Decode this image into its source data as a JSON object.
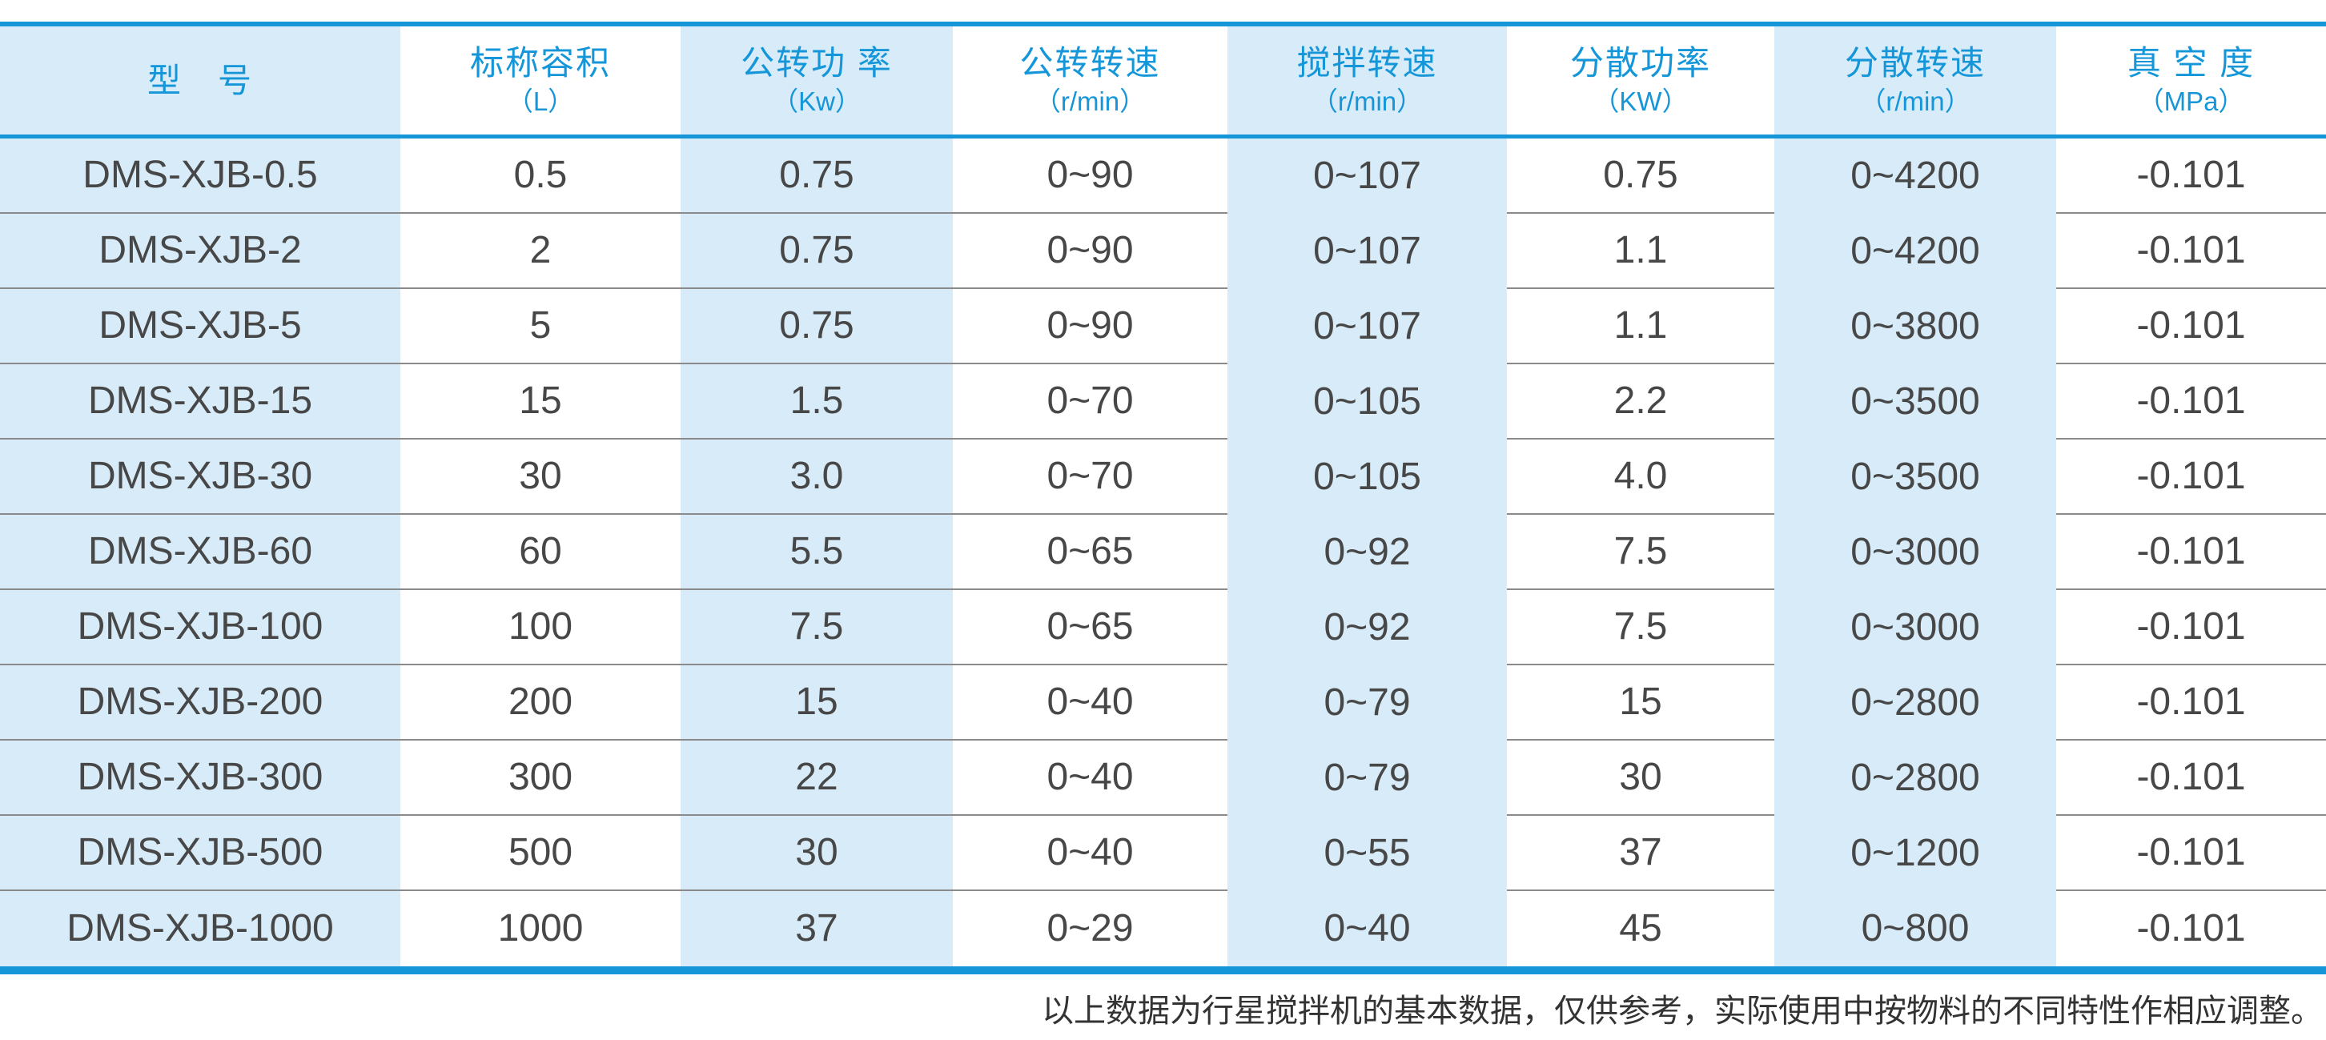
{
  "accent_color": "#1496d9",
  "band_color": "#d7ebf8",
  "table": {
    "columns": [
      {
        "title": "型　号",
        "unit": ""
      },
      {
        "title": "标称容积",
        "unit": "（L）"
      },
      {
        "title": "公转功 率",
        "unit": "（Kw）"
      },
      {
        "title": "公转转速",
        "unit": "（r/min）"
      },
      {
        "title": "搅拌转速",
        "unit": "（r/min）"
      },
      {
        "title": "分散功率",
        "unit": "（KW）"
      },
      {
        "title": "分散转速",
        "unit": "（r/min）"
      },
      {
        "title": "真 空 度",
        "unit": "（MPa）"
      }
    ],
    "rows": [
      [
        "DMS-XJB-0.5",
        "0.5",
        "0.75",
        "0~90",
        "0~107",
        "0.75",
        "0~4200",
        "-0.101"
      ],
      [
        "DMS-XJB-2",
        "2",
        "0.75",
        "0~90",
        "0~107",
        "1.1",
        "0~4200",
        "-0.101"
      ],
      [
        "DMS-XJB-5",
        "5",
        "0.75",
        "0~90",
        "0~107",
        "1.1",
        "0~3800",
        "-0.101"
      ],
      [
        "DMS-XJB-15",
        "15",
        "1.5",
        "0~70",
        "0~105",
        "2.2",
        "0~3500",
        "-0.101"
      ],
      [
        "DMS-XJB-30",
        "30",
        "3.0",
        "0~70",
        "0~105",
        "4.0",
        "0~3500",
        "-0.101"
      ],
      [
        "DMS-XJB-60",
        "60",
        "5.5",
        "0~65",
        "0~92",
        "7.5",
        "0~3000",
        "-0.101"
      ],
      [
        "DMS-XJB-100",
        "100",
        "7.5",
        "0~65",
        "0~92",
        "7.5",
        "0~3000",
        "-0.101"
      ],
      [
        "DMS-XJB-200",
        "200",
        "15",
        "0~40",
        "0~79",
        "15",
        "0~2800",
        "-0.101"
      ],
      [
        "DMS-XJB-300",
        "300",
        "22",
        "0~40",
        "0~79",
        "30",
        "0~2800",
        "-0.101"
      ],
      [
        "DMS-XJB-500",
        "500",
        "30",
        "0~40",
        "0~55",
        "37",
        "0~1200",
        "-0.101"
      ],
      [
        "DMS-XJB-1000",
        "1000",
        "37",
        "0~29",
        "0~40",
        "45",
        "0~800",
        "-0.101"
      ]
    ]
  },
  "footer": {
    "note": "以上数据为行星搅拌机的基本数据，仅供参考，实际使用中按物料的不同特性作相应调整。"
  }
}
